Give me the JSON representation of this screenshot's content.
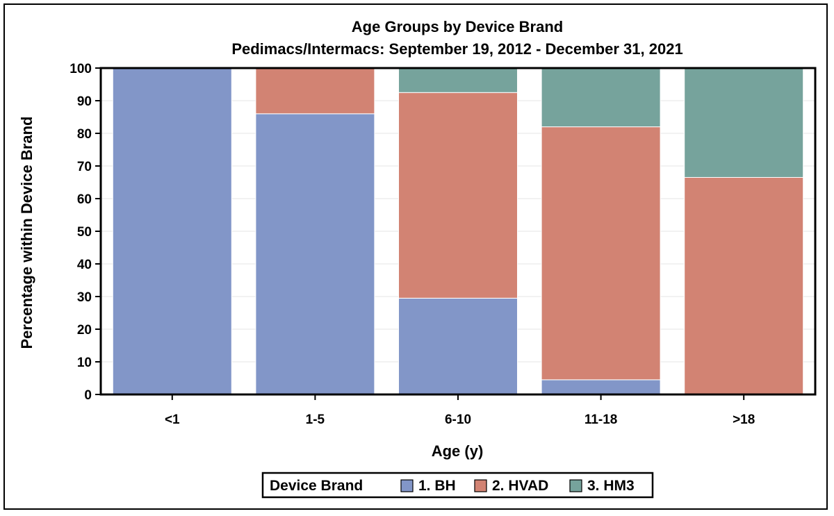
{
  "chart_data": {
    "type": "bar",
    "stacked": true,
    "title": "Age Groups by Device Brand",
    "subtitle": "Pedimacs/Intermacs: September 19, 2012 - December 31, 2021",
    "xlabel": "Age (y)",
    "ylabel": "Percentage within Device Brand",
    "ylim": [
      0,
      100
    ],
    "yticks": [
      0,
      10,
      20,
      30,
      40,
      50,
      60,
      70,
      80,
      90,
      100
    ],
    "grid": true,
    "categories": [
      "<1",
      "1-5",
      "6-10",
      "11-18",
      ">18"
    ],
    "series": [
      {
        "name": "1. BH",
        "color": "#8296c8",
        "values": [
          100,
          86,
          29.5,
          4.5,
          0
        ]
      },
      {
        "name": "2. HVAD",
        "color": "#d28373",
        "values": [
          0,
          14,
          63,
          77.5,
          66.5
        ]
      },
      {
        "name": "3. HM3",
        "color": "#76a39c",
        "values": [
          0,
          0,
          7.5,
          18,
          33.5
        ]
      }
    ],
    "legend": {
      "title": "Device Brand",
      "position": "bottom-center"
    }
  }
}
